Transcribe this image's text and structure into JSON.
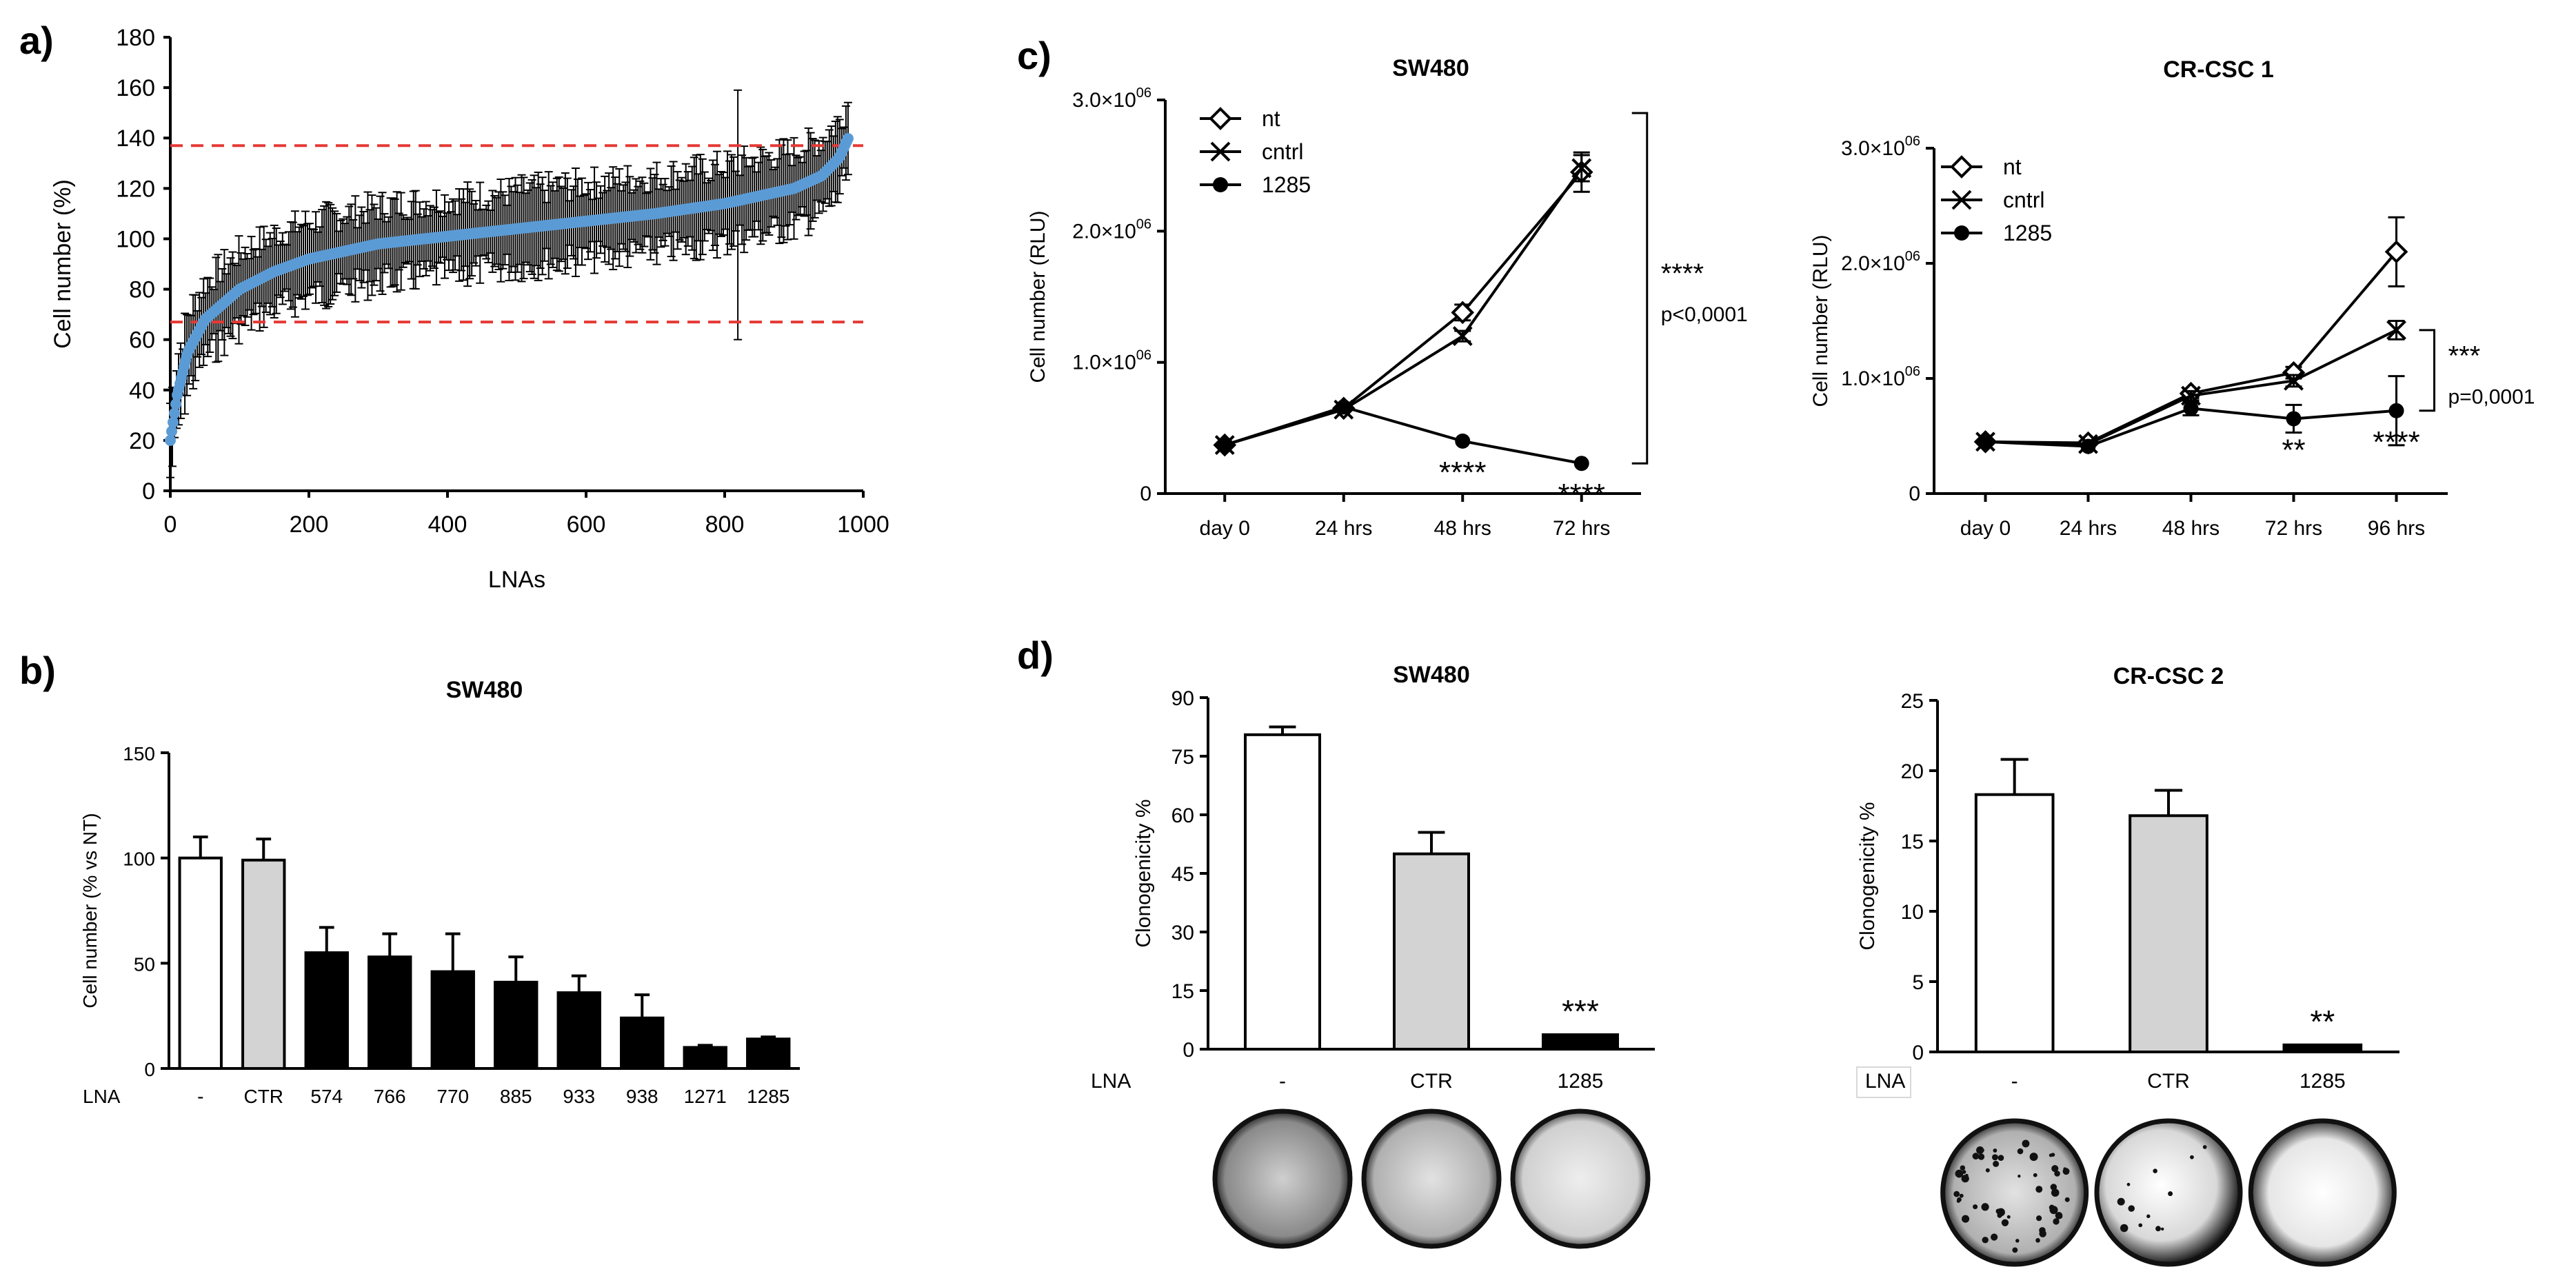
{
  "figure": {
    "panel_letters": [
      "a)",
      "b)",
      "c)",
      "d)"
    ]
  },
  "colors": {
    "line_a": "#5b9bd5",
    "threshold": "#e53935",
    "ctrl_bar": "#d3d3d3",
    "black": "#000000",
    "white": "#ffffff"
  },
  "chart_data": [
    {
      "id": "a",
      "type": "scatter",
      "title": "",
      "xlabel": "LNAs",
      "ylabel": "Cell number (%)",
      "xlim": [
        0,
        1000
      ],
      "ylim": [
        0,
        180
      ],
      "xticks": [
        "0",
        "200",
        "400",
        "600",
        "800",
        "1000"
      ],
      "yticks": [
        "0",
        "20",
        "40",
        "60",
        "80",
        "100",
        "120",
        "140",
        "160",
        "180"
      ],
      "thresholds": [
        137,
        67
      ],
      "n_points": 980,
      "curve_anchors": [
        [
          0,
          20
        ],
        [
          10,
          38
        ],
        [
          25,
          55
        ],
        [
          50,
          68
        ],
        [
          100,
          80
        ],
        [
          150,
          87
        ],
        [
          200,
          92
        ],
        [
          300,
          98
        ],
        [
          400,
          101
        ],
        [
          500,
          104
        ],
        [
          600,
          107
        ],
        [
          700,
          110
        ],
        [
          800,
          114
        ],
        [
          900,
          120
        ],
        [
          940,
          125
        ],
        [
          965,
          132
        ],
        [
          980,
          141
        ]
      ],
      "error_spread": 18,
      "outlier_errors": [
        {
          "x": 820,
          "hi": 159,
          "lo": 60
        }
      ]
    },
    {
      "id": "b",
      "type": "bar",
      "title": "SW480",
      "ylabel": "Cell number (% vs NT)",
      "xlabel_prefix": "LNA",
      "categories": [
        "-",
        "CTR",
        "574",
        "766",
        "770",
        "885",
        "933",
        "938",
        "1271",
        "1285"
      ],
      "values": [
        100,
        99,
        55,
        53,
        46,
        41,
        36,
        24,
        10,
        14
      ],
      "errors": [
        10,
        10,
        12,
        11,
        18,
        12,
        8,
        11,
        1,
        1
      ],
      "fills": [
        "white",
        "grey",
        "black",
        "black",
        "black",
        "black",
        "black",
        "black",
        "black",
        "black"
      ],
      "ylim": [
        0,
        150
      ],
      "yticks": [
        "0",
        "50",
        "100",
        "150"
      ]
    },
    {
      "id": "c1",
      "type": "line",
      "title": "SW480",
      "ylabel": "Cell number (RLU)",
      "categories": [
        "day 0",
        "24 hrs",
        "48 hrs",
        "72 hrs"
      ],
      "series": [
        {
          "name": "nt",
          "marker": "diamond",
          "values": [
            370000,
            650000,
            1380000,
            2450000
          ],
          "errors": [
            20000,
            20000,
            60000,
            150000
          ]
        },
        {
          "name": "cntrl",
          "marker": "x",
          "values": [
            370000,
            640000,
            1200000,
            2480000
          ],
          "errors": [
            20000,
            20000,
            40000,
            100000
          ]
        },
        {
          "name": "1285",
          "marker": "dot",
          "values": [
            370000,
            660000,
            400000,
            230000
          ],
          "errors": [
            20000,
            20000,
            20000,
            20000
          ]
        }
      ],
      "ylim": [
        0,
        3000000
      ],
      "yticks": [
        {
          "v": 0,
          "base": "0",
          "exp": ""
        },
        {
          "v": 1000000,
          "base": "1.0×10",
          "exp": "06"
        },
        {
          "v": 2000000,
          "base": "2.0×10",
          "exp": "06"
        },
        {
          "v": 3000000,
          "base": "3.0×10",
          "exp": "06"
        }
      ],
      "point_stars": [
        {
          "i": 2,
          "text": "****"
        },
        {
          "i": 3,
          "text": "****"
        }
      ],
      "bracket": {
        "hi": 2900000,
        "lo": 230000,
        "text1": "****",
        "text2": "p<0,0001"
      }
    },
    {
      "id": "c2",
      "type": "line",
      "title": "CR-CSC 1",
      "ylabel": "Cell number (RLU)",
      "categories": [
        "day 0",
        "24 hrs",
        "48 hrs",
        "72 hrs",
        "96 hrs"
      ],
      "series": [
        {
          "name": "nt",
          "marker": "diamond",
          "values": [
            450000,
            440000,
            870000,
            1050000,
            2100000
          ],
          "errors": [
            20000,
            20000,
            40000,
            50000,
            300000
          ]
        },
        {
          "name": "cntrl",
          "marker": "x",
          "values": [
            450000,
            430000,
            850000,
            980000,
            1420000
          ],
          "errors": [
            20000,
            20000,
            40000,
            50000,
            80000
          ]
        },
        {
          "name": "1285",
          "marker": "dot",
          "values": [
            450000,
            410000,
            740000,
            650000,
            720000
          ],
          "errors": [
            20000,
            20000,
            60000,
            120000,
            300000
          ]
        }
      ],
      "ylim": [
        0,
        3000000
      ],
      "yticks": [
        {
          "v": 0,
          "base": "0",
          "exp": ""
        },
        {
          "v": 1000000,
          "base": "1.0×10",
          "exp": "06"
        },
        {
          "v": 2000000,
          "base": "2.0×10",
          "exp": "06"
        },
        {
          "v": 3000000,
          "base": "3.0×10",
          "exp": "06"
        }
      ],
      "point_stars": [
        {
          "i": 3,
          "text": "**"
        },
        {
          "i": 4,
          "text": "****"
        }
      ],
      "bracket": {
        "hi": 1420000,
        "lo": 720000,
        "text1": "***",
        "text2": "p=0,0001"
      }
    },
    {
      "id": "d1",
      "type": "bar",
      "title": "SW480",
      "ylabel": "Clonogenicity %",
      "xlabel_prefix": "LNA",
      "categories": [
        "-",
        "CTR",
        "1285"
      ],
      "values": [
        80.5,
        50,
        3.7
      ],
      "errors": [
        2,
        5.5,
        0
      ],
      "fills": [
        "white",
        "grey",
        "black"
      ],
      "ylim": [
        0,
        90
      ],
      "yticks": [
        "0",
        "15",
        "30",
        "45",
        "60",
        "75",
        "90"
      ],
      "stars": [
        "",
        "",
        "***"
      ],
      "plates": [
        "dark",
        "medium",
        "light"
      ]
    },
    {
      "id": "d2",
      "type": "bar",
      "title": "CR-CSC 2",
      "ylabel": "Clonogenicity %",
      "xlabel_prefix": "LNA",
      "categories": [
        "-",
        "CTR",
        "1285"
      ],
      "values": [
        18.3,
        16.8,
        0.5
      ],
      "errors": [
        2.5,
        1.8,
        0
      ],
      "fills": [
        "white",
        "grey",
        "black"
      ],
      "ylim": [
        0,
        25
      ],
      "yticks": [
        "0",
        "5",
        "10",
        "15",
        "20",
        "25"
      ],
      "stars": [
        "",
        "",
        "**"
      ],
      "plates": [
        "dots",
        "bright",
        "clear"
      ]
    }
  ]
}
